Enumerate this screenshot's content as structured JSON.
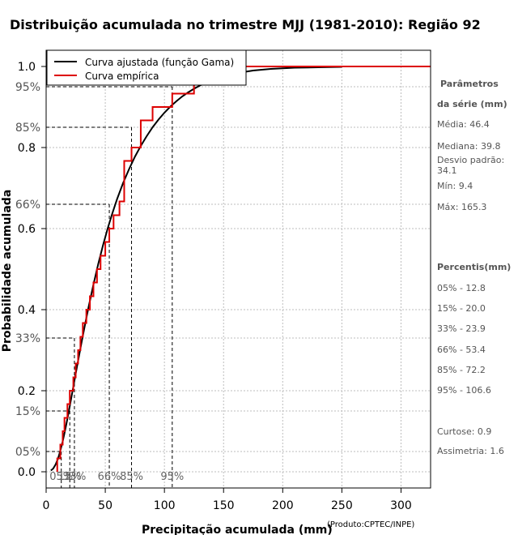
{
  "chart_data": {
    "type": "line",
    "title": "Distribuição acumulada no trimestre MJJ (1981-2010): Região 92",
    "xlabel": "Precipitação acumulada (mm)",
    "xlabel_note": "(Produto:CPTEC/INPE)",
    "ylabel": "Probabilidade acumulada",
    "xlim": [
      0,
      325
    ],
    "ylim": [
      -0.04,
      1.04
    ],
    "x_ticks": [
      0,
      50,
      100,
      150,
      200,
      250,
      300
    ],
    "y_ticks": [
      0.0,
      0.2,
      0.4,
      0.6,
      0.8,
      1.0
    ],
    "y_tick_labels": [
      "0.0",
      "0.2",
      "0.4",
      "0.6",
      "0.8",
      "1.0"
    ],
    "grid": true,
    "legend_position": "top-left",
    "series": [
      {
        "name": "Curva ajustada (função Gama)",
        "color": "#000000",
        "x": [
          4,
          6,
          8,
          10,
          12,
          14,
          16,
          18,
          20,
          22,
          24,
          26,
          28,
          30,
          33,
          36,
          40,
          44,
          48,
          52,
          56,
          60,
          65,
          70,
          75,
          80,
          85,
          90,
          95,
          100,
          105,
          110,
          115,
          120,
          125,
          130,
          140,
          150,
          160,
          175,
          190,
          210,
          230,
          250
        ],
        "y": [
          0.003,
          0.008,
          0.018,
          0.032,
          0.052,
          0.075,
          0.102,
          0.131,
          0.162,
          0.194,
          0.226,
          0.258,
          0.289,
          0.32,
          0.365,
          0.408,
          0.462,
          0.512,
          0.558,
          0.6,
          0.638,
          0.673,
          0.712,
          0.746,
          0.777,
          0.804,
          0.828,
          0.85,
          0.869,
          0.886,
          0.901,
          0.914,
          0.926,
          0.936,
          0.945,
          0.953,
          0.966,
          0.976,
          0.983,
          0.99,
          0.994,
          0.997,
          0.998,
          0.999
        ]
      },
      {
        "name": "Curva empírica",
        "color": "#dd0000",
        "type": "step",
        "x": [
          9.4,
          12,
          14,
          15.5,
          18,
          20,
          23,
          25,
          27,
          29,
          31,
          34,
          37,
          40,
          43,
          46,
          50,
          53.4,
          57,
          62,
          66,
          72.2,
          80,
          90,
          106.6,
          125,
          140,
          155,
          165.3,
          325
        ],
        "y": [
          0.033,
          0.067,
          0.1,
          0.133,
          0.167,
          0.2,
          0.233,
          0.267,
          0.3,
          0.333,
          0.367,
          0.4,
          0.433,
          0.467,
          0.5,
          0.533,
          0.567,
          0.6,
          0.633,
          0.667,
          0.767,
          0.8,
          0.867,
          0.9,
          0.933,
          0.967,
          0.967,
          0.967,
          1.0,
          1.0
        ]
      }
    ],
    "percentile_markers": [
      {
        "label": "05%",
        "p": 0.05,
        "x": 12.8
      },
      {
        "label": "15%",
        "p": 0.15,
        "x": 20.0
      },
      {
        "label": "33%",
        "p": 0.33,
        "x": 23.9
      },
      {
        "label": "66%",
        "p": 0.66,
        "x": 53.4
      },
      {
        "label": "85%",
        "p": 0.85,
        "x": 72.2
      },
      {
        "label": "95%",
        "p": 0.95,
        "x": 106.6
      }
    ]
  },
  "side_panel": {
    "params_title_1": "Parâmetros",
    "params_title_2": "da série (mm)",
    "media": "Média: 46.4",
    "mediana": "Mediana: 39.8",
    "desvio": "Desvio padrão: 34.1",
    "min": "Mín: 9.4",
    "max": "Máx: 165.3",
    "percentis_title": "Percentis(mm)",
    "p05": "05% - 12.8",
    "p15": "15% - 20.0",
    "p33": "33% - 23.9",
    "p66": "66% - 53.4",
    "p85": "85% - 72.2",
    "p95": "95% - 106.6",
    "curtose": "Curtose: 0.9",
    "assimetria": "Assimetria: 1.6"
  }
}
